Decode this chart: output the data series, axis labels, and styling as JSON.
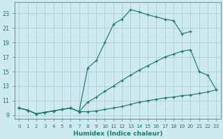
{
  "bg_color": "#ceeaf0",
  "grid_color": "#aacdd6",
  "line_color": "#1a7a6e",
  "xlabel": "Humidex (Indice chaleur)",
  "xlim": [
    -0.5,
    23.5
  ],
  "ylim": [
    8.5,
    24.5
  ],
  "xticks": [
    0,
    1,
    2,
    3,
    4,
    5,
    6,
    7,
    8,
    9,
    10,
    11,
    12,
    13,
    14,
    15,
    16,
    17,
    18,
    19,
    20,
    21,
    22,
    23
  ],
  "yticks": [
    9,
    11,
    13,
    15,
    17,
    19,
    21,
    23
  ],
  "line_top_x": [
    0,
    1,
    2,
    3,
    4,
    5,
    6,
    7,
    8,
    9,
    10,
    11,
    12,
    13,
    14,
    15,
    16,
    17,
    18,
    19,
    20
  ],
  "line_top_y": [
    10.0,
    9.7,
    9.2,
    9.4,
    9.6,
    9.8,
    10.0,
    9.5,
    15.5,
    16.5,
    19.0,
    21.5,
    22.2,
    23.5,
    23.2,
    22.8,
    22.5,
    22.2,
    22.0,
    20.2,
    20.5
  ],
  "line_mid_x": [
    0,
    1,
    2,
    3,
    4,
    5,
    6,
    7,
    8,
    9,
    10,
    11,
    12,
    13,
    14,
    15,
    16,
    17,
    18,
    19,
    20,
    21,
    22,
    23
  ],
  "line_mid_y": [
    10.0,
    9.7,
    9.2,
    9.4,
    9.6,
    9.8,
    10.0,
    9.5,
    10.8,
    11.5,
    12.3,
    13.0,
    13.8,
    14.5,
    15.2,
    15.8,
    16.4,
    17.0,
    17.4,
    17.8,
    18.0,
    15.0,
    14.5,
    12.5
  ],
  "line_bot_x": [
    0,
    1,
    2,
    3,
    4,
    5,
    6,
    7,
    8,
    9,
    10,
    11,
    12,
    13,
    14,
    15,
    16,
    17,
    18,
    19,
    20,
    21,
    22,
    23
  ],
  "line_bot_y": [
    10.0,
    9.7,
    9.2,
    9.4,
    9.6,
    9.8,
    10.0,
    9.5,
    9.5,
    9.6,
    9.8,
    10.0,
    10.2,
    10.5,
    10.8,
    11.0,
    11.2,
    11.4,
    11.5,
    11.7,
    11.8,
    12.0,
    12.2,
    12.5
  ]
}
